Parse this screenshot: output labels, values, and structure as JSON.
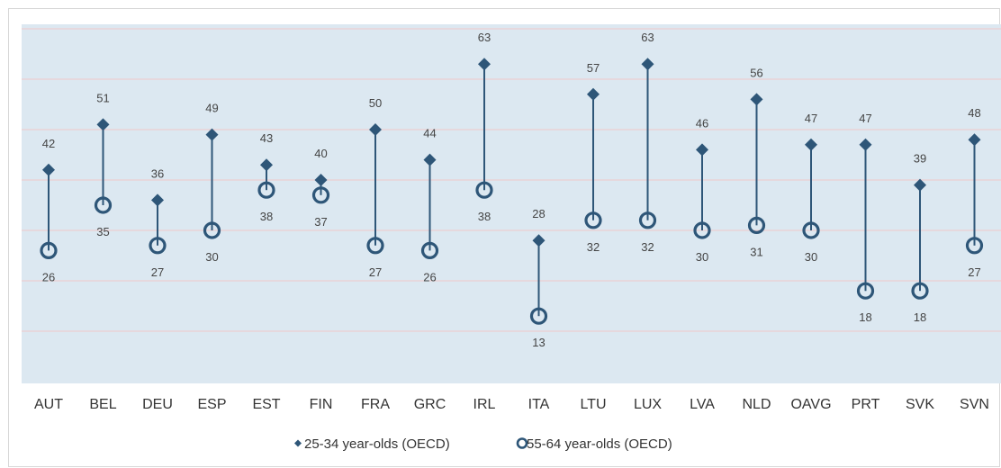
{
  "chart_data": {
    "type": "dumbbell",
    "categories": [
      "AUT",
      "BEL",
      "DEU",
      "ESP",
      "EST",
      "FIN",
      "FRA",
      "GRC",
      "IRL",
      "ITA",
      "LTU",
      "LUX",
      "LVA",
      "NLD",
      "OAVG",
      "PRT",
      "SVK",
      "SVN"
    ],
    "series": [
      {
        "name": "25-34 year-olds (OECD)",
        "marker": "diamond",
        "values": [
          42,
          51,
          36,
          49,
          43,
          40,
          50,
          44,
          63,
          28,
          57,
          63,
          46,
          56,
          47,
          47,
          39,
          48
        ]
      },
      {
        "name": "55-64 year-olds (OECD)",
        "marker": "ring",
        "values": [
          26,
          35,
          27,
          30,
          38,
          37,
          27,
          26,
          38,
          13,
          32,
          32,
          30,
          31,
          30,
          18,
          18,
          27
        ]
      }
    ],
    "ylim": [
      0,
      70
    ],
    "grid": true,
    "legend_position": "bottom",
    "colors": {
      "plot_background": "#dce8f1",
      "marker": "#2e5678",
      "grid": "#efc9c9"
    }
  }
}
